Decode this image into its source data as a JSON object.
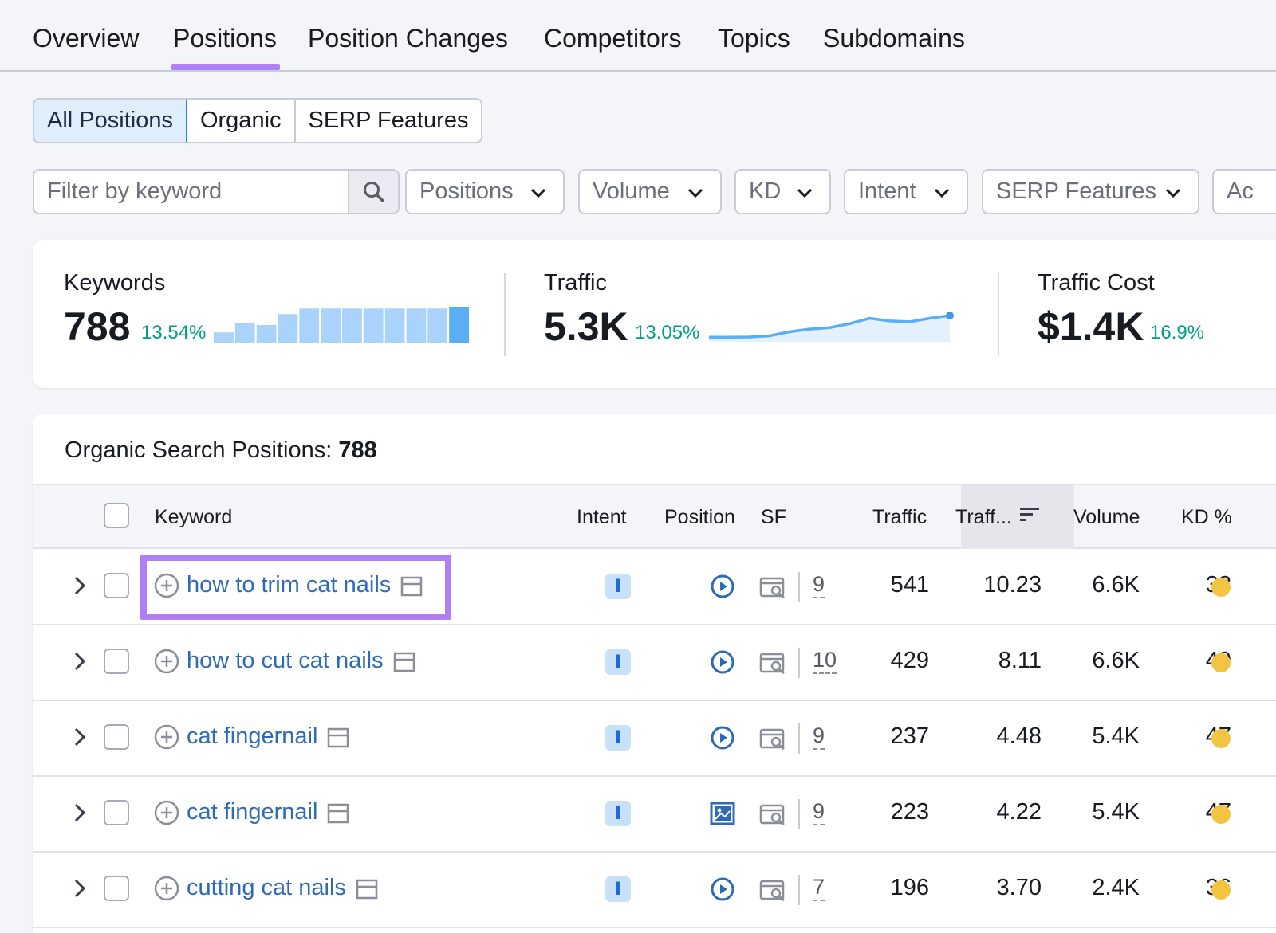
{
  "tabs": [
    "Overview",
    "Positions",
    "Position Changes",
    "Competitors",
    "Topics",
    "Subdomains"
  ],
  "active_tab": "Positions",
  "segments": [
    "All Positions",
    "Organic",
    "SERP Features"
  ],
  "filter": {
    "placeholder": "Filter by keyword"
  },
  "dropdowns": [
    "Positions",
    "Volume",
    "KD",
    "Intent",
    "SERP Features",
    "Ac"
  ],
  "summary": {
    "keywords": {
      "label": "Keywords",
      "value": "788",
      "change": "13.54%"
    },
    "traffic": {
      "label": "Traffic",
      "value": "5.3K",
      "change": "13.05%"
    },
    "traffic_cost": {
      "label": "Traffic Cost",
      "value": "$1.4K",
      "change": "16.9%"
    }
  },
  "keywords_bars": [
    0.3,
    0.55,
    0.5,
    0.8,
    0.95,
    0.95,
    0.95,
    0.95,
    0.95,
    0.95,
    0.95,
    1.0
  ],
  "traffic_trend": [
    0.05,
    0.05,
    0.06,
    0.1,
    0.25,
    0.35,
    0.4,
    0.55,
    0.75,
    0.65,
    0.62,
    0.75,
    0.85
  ],
  "colors": {
    "accent": "#b07ef5",
    "link": "#2e6bb6",
    "positive": "#009f81",
    "kd_medium": "#f3c441"
  },
  "table": {
    "title_label": "Organic Search Positions:",
    "title_count": "788",
    "headers": {
      "keyword": "Keyword",
      "intent": "Intent",
      "position": "Position",
      "sf": "SF",
      "traffic": "Traffic",
      "traffic_pct": "Traff...",
      "volume": "Volume",
      "kd": "KD %"
    },
    "rows": [
      {
        "keyword": "how to trim cat nails",
        "intent": "I",
        "position_icon": "video-icon",
        "sf": "9",
        "traffic": "541",
        "traffic_pct": "10.23",
        "volume": "6.6K",
        "kd": "38"
      },
      {
        "keyword": "how to cut cat nails",
        "intent": "I",
        "position_icon": "video-icon",
        "sf": "10",
        "traffic": "429",
        "traffic_pct": "8.11",
        "volume": "6.6K",
        "kd": "49"
      },
      {
        "keyword": "cat fingernail",
        "intent": "I",
        "position_icon": "video-icon",
        "sf": "9",
        "traffic": "237",
        "traffic_pct": "4.48",
        "volume": "5.4K",
        "kd": "47"
      },
      {
        "keyword": "cat fingernail",
        "intent": "I",
        "position_icon": "image-icon",
        "sf": "9",
        "traffic": "223",
        "traffic_pct": "4.22",
        "volume": "5.4K",
        "kd": "47"
      },
      {
        "keyword": "cutting cat nails",
        "intent": "I",
        "position_icon": "video-icon",
        "sf": "7",
        "traffic": "196",
        "traffic_pct": "3.70",
        "volume": "2.4K",
        "kd": "36"
      }
    ]
  }
}
